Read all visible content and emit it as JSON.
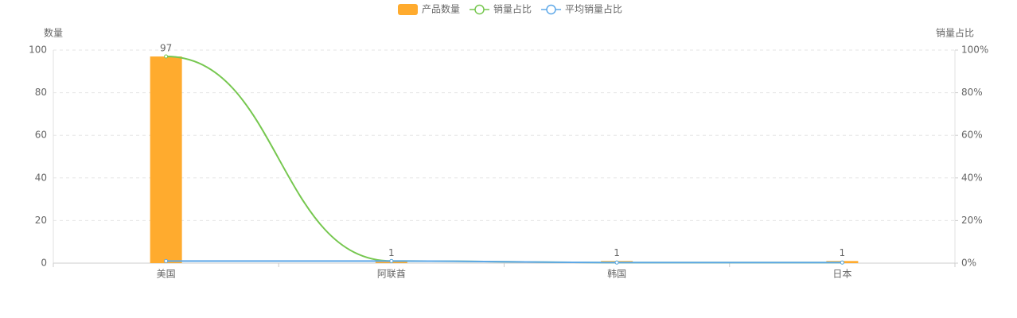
{
  "chart_data": {
    "type": "bar-line",
    "categories": [
      "美国",
      "阿联酋",
      "韩国",
      "日本"
    ],
    "series": [
      {
        "name": "产品数量",
        "type": "bar",
        "color": "#ffab2e",
        "values": [
          97,
          1,
          1,
          1
        ]
      },
      {
        "name": "销量占比",
        "type": "line",
        "axis": "y2",
        "color": "#76c74f",
        "values": [
          97,
          1,
          0.3,
          0.3
        ]
      },
      {
        "name": "平均销量占比",
        "type": "line",
        "axis": "y2",
        "color": "#5ea8e8",
        "values": [
          1,
          1,
          0.3,
          0.3
        ]
      }
    ],
    "y_label": "数量",
    "y2_label": "销量占比",
    "ylim": [
      0,
      100
    ],
    "yticks": [
      0,
      20,
      40,
      60,
      80,
      100
    ],
    "y2lim": [
      0,
      100
    ],
    "y2ticks": [
      {
        "value": 0,
        "label": "0%"
      },
      {
        "value": 20,
        "label": "20%"
      },
      {
        "value": 40,
        "label": "40%"
      },
      {
        "value": 60,
        "label": "60%"
      },
      {
        "value": 80,
        "label": "80%"
      },
      {
        "value": 100,
        "label": "100%"
      }
    ],
    "grid": true,
    "legend": "top"
  }
}
